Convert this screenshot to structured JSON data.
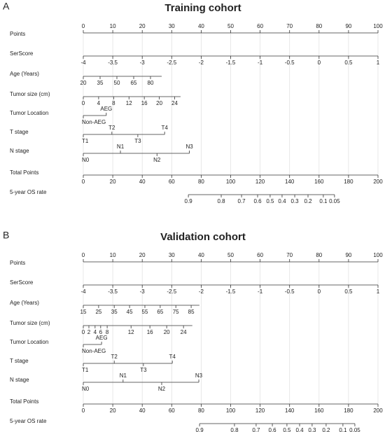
{
  "chart_data": [
    {
      "type": "nomogram",
      "panel": "A",
      "title": "Training cohort",
      "points_lim": [
        0,
        100
      ],
      "total_lim": [
        0,
        200
      ],
      "grid": true,
      "rows": [
        {
          "name": "Points",
          "axis": "points",
          "label_side": "above",
          "range": [
            0,
            100
          ],
          "ticks": [
            0,
            10,
            20,
            30,
            40,
            50,
            60,
            70,
            80,
            90,
            100
          ],
          "positions": [
            0,
            10,
            20,
            30,
            40,
            50,
            60,
            70,
            80,
            90,
            100
          ]
        },
        {
          "name": "SerScore",
          "axis": "points",
          "label_side": "below",
          "range": [
            0,
            100
          ],
          "ticks": [
            -4,
            -3.5,
            -3,
            -2.5,
            -2,
            -1.5,
            -1,
            -0.5,
            0,
            0.5,
            1
          ],
          "positions": [
            0,
            10,
            20,
            30,
            40,
            50,
            60,
            70,
            80,
            90,
            100
          ]
        },
        {
          "name": "Age (Years)",
          "axis": "points",
          "label_side": "below",
          "range": [
            0,
            26.6
          ],
          "ticks": [
            20,
            35,
            50,
            65,
            80
          ],
          "positions": [
            0,
            5.7,
            11.4,
            17.1,
            22.8
          ]
        },
        {
          "name": "Tumor size (cm)",
          "axis": "points",
          "label_side": "below",
          "range": [
            0,
            33
          ],
          "ticks": [
            0,
            4,
            8,
            12,
            16,
            20,
            24
          ],
          "positions": [
            0,
            5.2,
            10.3,
            15.5,
            20.7,
            25.8,
            31
          ]
        },
        {
          "name": "Tumor Location",
          "axis": "points",
          "label_side": [
            "below",
            "above"
          ],
          "range": [
            0,
            7.8
          ],
          "ticks": [
            "Non-AEG",
            "AEG"
          ],
          "positions": [
            0,
            7.8
          ]
        },
        {
          "name": "T stage",
          "axis": "points",
          "label_side": [
            "below",
            "above",
            "below",
            "above"
          ],
          "range": [
            0,
            27.6
          ],
          "ticks": [
            "T1",
            "T2",
            "T3",
            "T4"
          ],
          "positions": [
            0,
            9.7,
            18.5,
            27.6
          ]
        },
        {
          "name": "N stage",
          "axis": "points",
          "label_side": [
            "below",
            "above",
            "below",
            "above"
          ],
          "range": [
            0,
            36
          ],
          "ticks": [
            "N0",
            "N1",
            "N2",
            "N3"
          ],
          "positions": [
            0,
            12.6,
            25,
            36
          ]
        },
        {
          "name": "Total Points",
          "axis": "total",
          "label_side": "below",
          "range": [
            0,
            200
          ],
          "ticks": [
            0,
            20,
            40,
            60,
            80,
            100,
            120,
            140,
            160,
            180,
            200
          ],
          "positions": [
            0,
            20,
            40,
            60,
            80,
            100,
            120,
            140,
            160,
            180,
            200
          ]
        },
        {
          "name": "5-year OS rate",
          "axis": "total",
          "label_side": "below",
          "range": [
            71.3,
            170.5
          ],
          "ticks": [
            0.9,
            0.8,
            0.7,
            0.6,
            0.5,
            0.4,
            0.3,
            0.2,
            0.1,
            0.05
          ],
          "positions": [
            71.3,
            93.6,
            107.4,
            118.3,
            126.8,
            134.9,
            143.5,
            152.5,
            162.9,
            170.5
          ]
        }
      ]
    },
    {
      "type": "nomogram",
      "panel": "B",
      "title": "Validation cohort",
      "points_lim": [
        0,
        100
      ],
      "total_lim": [
        0,
        200
      ],
      "grid": true,
      "rows": [
        {
          "name": "Points",
          "axis": "points",
          "label_side": "above",
          "range": [
            0,
            100
          ],
          "ticks": [
            0,
            10,
            20,
            30,
            40,
            50,
            60,
            70,
            80,
            90,
            100
          ],
          "positions": [
            0,
            10,
            20,
            30,
            40,
            50,
            60,
            70,
            80,
            90,
            100
          ]
        },
        {
          "name": "SerScore",
          "axis": "points",
          "label_side": "below",
          "range": [
            0,
            100
          ],
          "ticks": [
            -4,
            -3.5,
            -3,
            -2.5,
            -2,
            -1.5,
            -1,
            -0.5,
            0,
            0.5,
            1
          ],
          "positions": [
            0,
            10,
            20,
            30,
            40,
            50,
            60,
            70,
            80,
            90,
            100
          ]
        },
        {
          "name": "Age (Years)",
          "axis": "points",
          "label_side": "below",
          "range": [
            0,
            39.4
          ],
          "ticks": [
            15,
            25,
            35,
            45,
            55,
            65,
            75,
            85
          ],
          "positions": [
            0,
            5.2,
            10.5,
            15.7,
            20.9,
            26.1,
            31.4,
            36.6
          ]
        },
        {
          "name": "Tumor size (cm)",
          "axis": "points",
          "label_side": "below",
          "range": [
            0,
            37
          ],
          "ticks": [
            0,
            2,
            4,
            6,
            8,
            12,
            16,
            20,
            24
          ],
          "positions": [
            0,
            1.9,
            4,
            5.9,
            8.1,
            16.2,
            22.6,
            28.3,
            34
          ]
        },
        {
          "name": "Tumor Location",
          "axis": "points",
          "label_side": [
            "below",
            "above"
          ],
          "range": [
            0,
            6.2
          ],
          "ticks": [
            "Non-AEG",
            "AEG"
          ],
          "positions": [
            0,
            6.2
          ]
        },
        {
          "name": "T stage",
          "axis": "points",
          "label_side": [
            "below",
            "above",
            "below",
            "above"
          ],
          "range": [
            0,
            30.2
          ],
          "ticks": [
            "T1",
            "T2",
            "T3",
            "T4"
          ],
          "positions": [
            0,
            10.5,
            20.4,
            30.2
          ]
        },
        {
          "name": "N stage",
          "axis": "points",
          "label_side": [
            "below",
            "above",
            "below",
            "above"
          ],
          "range": [
            0,
            39.2
          ],
          "ticks": [
            "N0",
            "N1",
            "N2",
            "N3"
          ],
          "positions": [
            0,
            13.5,
            26.6,
            39.2
          ]
        },
        {
          "name": "Total Points",
          "axis": "total",
          "label_side": "below",
          "range": [
            0,
            200
          ],
          "ticks": [
            0,
            20,
            40,
            60,
            80,
            100,
            120,
            140,
            160,
            180,
            200
          ],
          "positions": [
            0,
            20,
            40,
            60,
            80,
            100,
            120,
            140,
            160,
            180,
            200
          ]
        },
        {
          "name": "5-year OS rate",
          "axis": "total",
          "label_side": "below",
          "range": [
            78.9,
            184.3
          ],
          "ticks": [
            0.9,
            0.8,
            0.7,
            0.6,
            0.5,
            0.4,
            0.3,
            0.2,
            0.1,
            0.05
          ],
          "positions": [
            78.9,
            102.6,
            117.3,
            128.3,
            138.2,
            146.8,
            155.3,
            164.8,
            176.2,
            184.3
          ]
        }
      ]
    }
  ]
}
